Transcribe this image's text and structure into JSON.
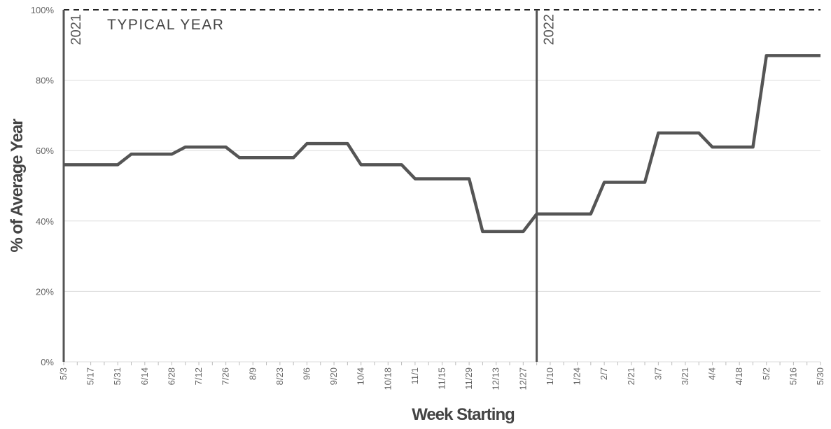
{
  "chart_data": {
    "type": "line",
    "x_label": "Week Starting",
    "y_label": "% of Average Year",
    "categories": [
      "5/3",
      null,
      "5/17",
      null,
      "5/31",
      null,
      "6/14",
      null,
      "6/28",
      null,
      "7/12",
      null,
      "7/26",
      null,
      "8/9",
      null,
      "8/23",
      null,
      "9/6",
      null,
      "9/20",
      null,
      "10/4",
      null,
      "10/18",
      null,
      "11/1",
      null,
      "11/15",
      null,
      "11/29",
      null,
      "12/13",
      null,
      "12/27",
      null,
      "1/10",
      null,
      "1/24",
      null,
      "2/7",
      null,
      "2/21",
      null,
      "3/7",
      null,
      "3/21",
      null,
      "4/4",
      null,
      "4/18",
      null,
      "5/2",
      null,
      "5/16",
      null,
      "5/30"
    ],
    "series": [
      {
        "name": "% of Average Year",
        "color": "#555555",
        "values": [
          56,
          56,
          56,
          56,
          56,
          59,
          59,
          59,
          59,
          61,
          61,
          61,
          61,
          58,
          58,
          58,
          58,
          58,
          62,
          62,
          62,
          62,
          56,
          56,
          56,
          56,
          52,
          52,
          52,
          52,
          52,
          37,
          37,
          37,
          37,
          42,
          42,
          42,
          42,
          42,
          51,
          51,
          51,
          51,
          65,
          65,
          65,
          65,
          61,
          61,
          61,
          61,
          87,
          87,
          87,
          87,
          87
        ]
      }
    ],
    "ylim": [
      0,
      100
    ],
    "yticks": [
      {
        "value": 0,
        "label": "0%"
      },
      {
        "value": 20,
        "label": "20%"
      },
      {
        "value": 40,
        "label": "40%"
      },
      {
        "value": 60,
        "label": "60%"
      },
      {
        "value": 80,
        "label": "80%"
      },
      {
        "value": 100,
        "label": "100%"
      }
    ],
    "grid": true,
    "reference_line": {
      "value": 100,
      "label": "TYPICAL YEAR"
    },
    "year_labels": [
      "2021",
      "2022"
    ]
  }
}
